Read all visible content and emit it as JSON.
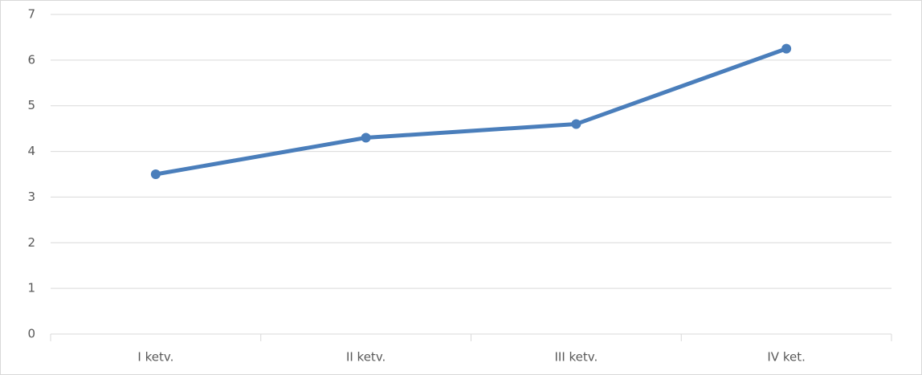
{
  "chart_data": {
    "type": "line",
    "categories": [
      "I ketv.",
      "II ketv.",
      "III ketv.",
      "IV ket."
    ],
    "values": [
      3.5,
      4.3,
      4.6,
      6.25
    ],
    "color": "#4a7ebb",
    "ylim": [
      0,
      7
    ],
    "yticks": [
      0,
      1,
      2,
      3,
      4,
      5,
      6,
      7
    ],
    "grid": true
  }
}
